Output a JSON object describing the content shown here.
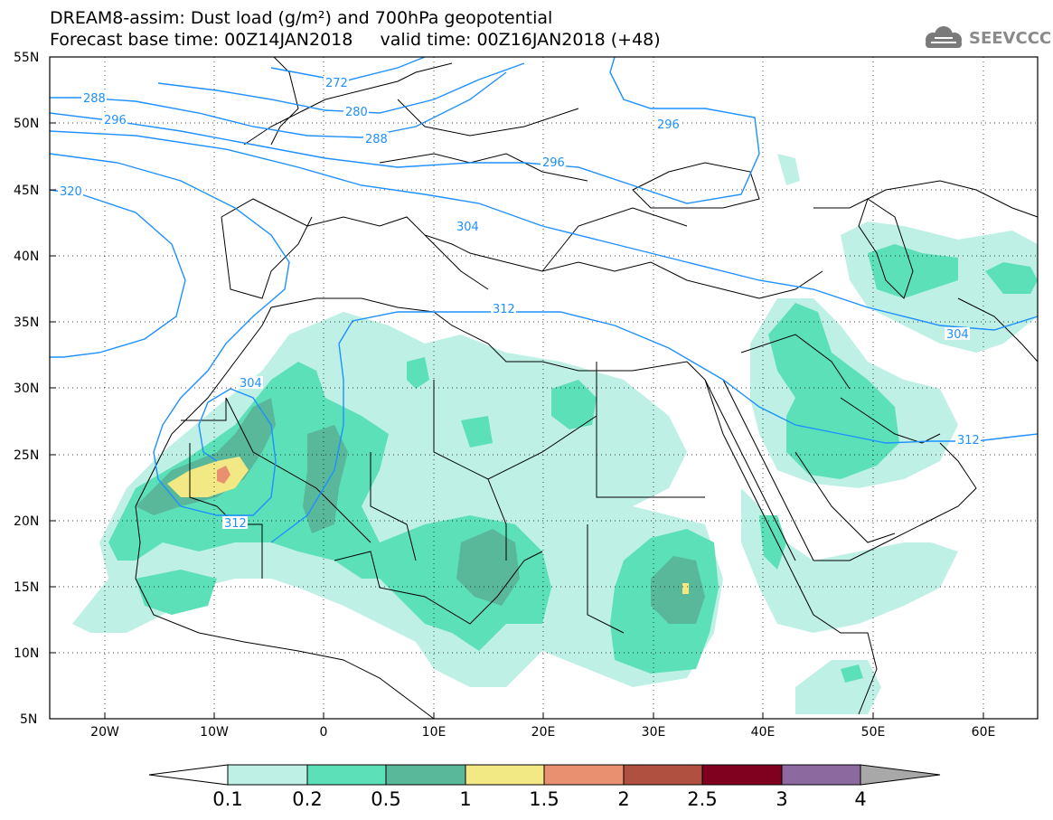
{
  "header": {
    "title_line1": "DREAM8-assim: Dust load (g/m²) and 700hPa geopotential",
    "title_line2": "Forecast base time: 00Z14JAN2018     valid time: 00Z16JAN2018 (+48)",
    "logo_text": "SEEVCCC",
    "logo_icon": "cloud-icon"
  },
  "map": {
    "lat_labels": [
      "55N",
      "50N",
      "45N",
      "40N",
      "35N",
      "30N",
      "25N",
      "20N",
      "15N",
      "10N",
      "5N"
    ],
    "lon_labels": [
      "20W",
      "10W",
      "0",
      "10E",
      "20E",
      "30E",
      "40E",
      "50E",
      "60E"
    ],
    "lat_range": [
      5,
      55
    ],
    "lon_range": [
      -25,
      65
    ],
    "grid": "dotted",
    "contour_color": "#1e90ff",
    "contour_labels": [
      "272",
      "280",
      "288",
      "288",
      "296",
      "296",
      "296",
      "304",
      "304",
      "304",
      "312",
      "312",
      "312",
      "320"
    ]
  },
  "colorbar": {
    "ticks": [
      "0.1",
      "0.2",
      "0.5",
      "1",
      "1.5",
      "2",
      "2.5",
      "3",
      "4"
    ],
    "colors": [
      "#ffffff",
      "#bff0e6",
      "#5ce0b8",
      "#5ab89a",
      "#f2e884",
      "#e89070",
      "#b05040",
      "#800020",
      "#8c6aa0",
      "#a8a8a8"
    ]
  }
}
